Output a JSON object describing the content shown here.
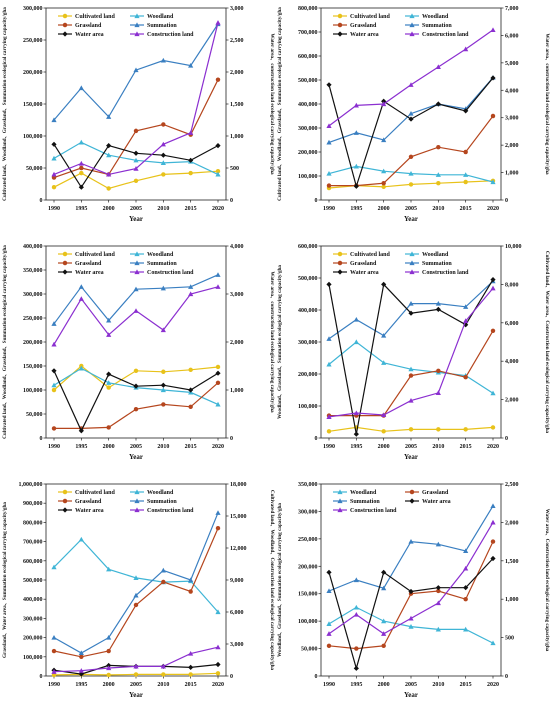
{
  "chart_data": [
    {
      "type": "line",
      "x": [
        1990,
        1995,
        2000,
        2005,
        2010,
        2015,
        2020
      ],
      "xlabel": "Year",
      "ylabel_left": "Cultivated land、Woodland、Grassland、Summation ecological carrying capacity/gha",
      "ylabel_right": "Water area、construction land ecological carrying capacity/gha",
      "ylim_left": [
        0,
        300000
      ],
      "ylim_right": [
        0,
        3000
      ],
      "yticks_left": [
        "0",
        "50,000",
        "100,000",
        "150,000",
        "200,000",
        "250,000",
        "300,000"
      ],
      "yticks_right": [
        "0",
        "500",
        "1,000",
        "1,500",
        "2,000",
        "2,500",
        "3,000"
      ],
      "series": [
        {
          "name": "Cultivated land",
          "axis": "left",
          "color": "#e8c21a",
          "marker": "circle",
          "values": [
            20000,
            42000,
            18000,
            30000,
            40000,
            42000,
            45000
          ]
        },
        {
          "name": "Woodland",
          "axis": "left",
          "color": "#3fb5d6",
          "marker": "triangle",
          "values": [
            65000,
            90000,
            70000,
            62000,
            58000,
            60000,
            40000
          ]
        },
        {
          "name": "Grassland",
          "axis": "left",
          "color": "#b5461e",
          "marker": "circle",
          "values": [
            35000,
            50000,
            40000,
            108000,
            118000,
            102000,
            188000
          ]
        },
        {
          "name": "Summation",
          "axis": "left",
          "color": "#3a7fc1",
          "marker": "triangle",
          "values": [
            125000,
            175000,
            130000,
            203000,
            218000,
            210000,
            275000
          ]
        },
        {
          "name": "Water area",
          "axis": "right",
          "color": "#111111",
          "marker": "diamond",
          "values": [
            870,
            200,
            850,
            730,
            700,
            620,
            850
          ]
        },
        {
          "name": "Construction land",
          "axis": "right",
          "color": "#8b2fd0",
          "marker": "triangle",
          "values": [
            400,
            570,
            400,
            490,
            870,
            1050,
            2770
          ]
        }
      ]
    },
    {
      "type": "line",
      "x": [
        1990,
        1995,
        2000,
        2005,
        2010,
        2015,
        2020
      ],
      "xlabel": "Year",
      "ylabel_left": "Cultivated land、Woodland、Grassland、Summation ecological carrying capacity/gha",
      "ylabel_right": "Water area、construction land ecological carrying capacity/gha",
      "ylim_left": [
        0,
        800000
      ],
      "ylim_right": [
        0,
        7000
      ],
      "yticks_left": [
        "0",
        "100,000",
        "200,000",
        "300,000",
        "400,000",
        "500,000",
        "600,000",
        "700,000",
        "800,000"
      ],
      "yticks_right": [
        "0",
        "1,000",
        "2,000",
        "3,000",
        "4,000",
        "5,000",
        "6,000",
        "7,000"
      ],
      "series": [
        {
          "name": "Cultivated land",
          "axis": "left",
          "color": "#e8c21a",
          "marker": "circle",
          "values": [
            50000,
            60000,
            55000,
            65000,
            70000,
            75000,
            80000
          ]
        },
        {
          "name": "Woodland",
          "axis": "left",
          "color": "#3fb5d6",
          "marker": "triangle",
          "values": [
            110000,
            140000,
            120000,
            110000,
            105000,
            105000,
            75000
          ]
        },
        {
          "name": "Grassland",
          "axis": "left",
          "color": "#b5461e",
          "marker": "circle",
          "values": [
            60000,
            60000,
            70000,
            180000,
            220000,
            200000,
            350000
          ]
        },
        {
          "name": "Summation",
          "axis": "left",
          "color": "#3a7fc1",
          "marker": "triangle",
          "values": [
            240000,
            280000,
            250000,
            360000,
            400000,
            380000,
            510000
          ]
        },
        {
          "name": "Water area",
          "axis": "right",
          "color": "#111111",
          "marker": "diamond",
          "values": [
            4200,
            500,
            3600,
            2950,
            3500,
            3250,
            4450
          ]
        },
        {
          "name": "Construction land",
          "axis": "right",
          "color": "#8b2fd0",
          "marker": "triangle",
          "values": [
            2700,
            3450,
            3500,
            4200,
            4850,
            5500,
            6200
          ]
        }
      ]
    },
    {
      "type": "line",
      "x": [
        1990,
        1995,
        2000,
        2005,
        2010,
        2015,
        2020
      ],
      "xlabel": "Year",
      "ylabel_left": "Cultivated land、Woodland、Grassland、Summation ecological carrying capacity/gha",
      "ylabel_right": "Water area、construction land ecological carrying capacity/gha",
      "ylim_left": [
        0,
        400000
      ],
      "ylim_right": [
        0,
        4000
      ],
      "yticks_left": [
        "0",
        "50,000",
        "100,000",
        "150,000",
        "200,000",
        "250,000",
        "300,000",
        "350,000",
        "400,000"
      ],
      "yticks_right": [
        "0",
        "1,000",
        "2,000",
        "3,000",
        "4,000"
      ],
      "series": [
        {
          "name": "Cultivated land",
          "axis": "left",
          "color": "#e8c21a",
          "marker": "circle",
          "values": [
            100000,
            150000,
            105000,
            140000,
            138000,
            142000,
            148000
          ]
        },
        {
          "name": "Woodland",
          "axis": "left",
          "color": "#3fb5d6",
          "marker": "triangle",
          "values": [
            110000,
            145000,
            115000,
            105000,
            100000,
            95000,
            70000
          ]
        },
        {
          "name": "Grassland",
          "axis": "left",
          "color": "#b5461e",
          "marker": "circle",
          "values": [
            20000,
            20000,
            22000,
            60000,
            70000,
            65000,
            115000
          ]
        },
        {
          "name": "Summation",
          "axis": "left",
          "color": "#3a7fc1",
          "marker": "triangle",
          "values": [
            238000,
            315000,
            245000,
            310000,
            312000,
            315000,
            340000
          ]
        },
        {
          "name": "Water area",
          "axis": "right",
          "color": "#111111",
          "marker": "diamond",
          "values": [
            1400,
            150,
            1330,
            1080,
            1100,
            1000,
            1350
          ]
        },
        {
          "name": "Construction land",
          "axis": "right",
          "color": "#8b2fd0",
          "marker": "triangle",
          "values": [
            1950,
            2900,
            2150,
            2650,
            2250,
            3000,
            3150
          ]
        }
      ]
    },
    {
      "type": "line",
      "x": [
        1990,
        1995,
        2000,
        2005,
        2010,
        2015,
        2020
      ],
      "xlabel": "Year",
      "ylabel_left": "Woodland、Grassland、Summation ecological carrying capacity/gha",
      "ylabel_right": "Cultivated land、Water area、Construction land ecological carrying capacity/gha",
      "ylim_left": [
        0,
        600000
      ],
      "ylim_right": [
        0,
        10000
      ],
      "yticks_left": [
        "0",
        "100,000",
        "200,000",
        "300,000",
        "400,000",
        "500,000",
        "600,000"
      ],
      "yticks_right": [
        "0",
        "2,000",
        "4,000",
        "6,000",
        "8,000",
        "10,000"
      ],
      "series": [
        {
          "name": "Cultivated land",
          "axis": "right",
          "color": "#e8c21a",
          "marker": "circle",
          "values": [
            350,
            550,
            350,
            450,
            450,
            450,
            550
          ]
        },
        {
          "name": "Woodland",
          "axis": "left",
          "color": "#3fb5d6",
          "marker": "triangle",
          "values": [
            230000,
            300000,
            235000,
            215000,
            205000,
            195000,
            140000
          ]
        },
        {
          "name": "Grassland",
          "axis": "left",
          "color": "#b5461e",
          "marker": "circle",
          "values": [
            70000,
            70000,
            70000,
            195000,
            210000,
            190000,
            335000
          ]
        },
        {
          "name": "Summation",
          "axis": "left",
          "color": "#3a7fc1",
          "marker": "triangle",
          "values": [
            310000,
            370000,
            320000,
            420000,
            420000,
            410000,
            490000
          ]
        },
        {
          "name": "Water area",
          "axis": "right",
          "color": "#111111",
          "marker": "diamond",
          "values": [
            8000,
            200,
            8000,
            6500,
            6700,
            5900,
            8250
          ]
        },
        {
          "name": "Construction land",
          "axis": "right",
          "color": "#8b2fd0",
          "marker": "triangle",
          "values": [
            1100,
            1300,
            1200,
            1950,
            2350,
            6100,
            7800
          ]
        }
      ]
    },
    {
      "type": "line",
      "x": [
        1990,
        1995,
        2000,
        2005,
        2010,
        2015,
        2020
      ],
      "xlabel": "Year",
      "ylabel_left": "Grassland、Water area、Summation ecological carrying capacity/gha",
      "ylabel_right": "Cultivated land、Woodland、Construction land ecological carrying capacity/gha",
      "ylim_left": [
        0,
        1000000
      ],
      "ylim_right": [
        0,
        18000
      ],
      "yticks_left": [
        "0",
        "100,000",
        "200,000",
        "300,000",
        "400,000",
        "500,000",
        "600,000",
        "700,000",
        "800,000",
        "900,000",
        "1,000,000"
      ],
      "yticks_right": [
        "0",
        "3,000",
        "6,000",
        "9,000",
        "12,000",
        "15,000",
        "18,000"
      ],
      "series": [
        {
          "name": "Cultivated land",
          "axis": "right",
          "color": "#e8c21a",
          "marker": "circle",
          "values": [
            100,
            150,
            100,
            150,
            150,
            150,
            250
          ]
        },
        {
          "name": "Woodland",
          "axis": "right",
          "color": "#3fb5d6",
          "marker": "triangle",
          "values": [
            10200,
            12800,
            10000,
            9200,
            8800,
            8900,
            6000
          ]
        },
        {
          "name": "Grassland",
          "axis": "left",
          "color": "#b5461e",
          "marker": "circle",
          "values": [
            130000,
            100000,
            130000,
            370000,
            490000,
            440000,
            770000
          ]
        },
        {
          "name": "Summation",
          "axis": "left",
          "color": "#3a7fc1",
          "marker": "triangle",
          "values": [
            200000,
            120000,
            200000,
            420000,
            550000,
            500000,
            850000
          ]
        },
        {
          "name": "Water area",
          "axis": "left",
          "color": "#111111",
          "marker": "diamond",
          "values": [
            30000,
            10000,
            55000,
            50000,
            50000,
            45000,
            60000
          ]
        },
        {
          "name": "Construction land",
          "axis": "right",
          "color": "#8b2fd0",
          "marker": "triangle",
          "values": [
            400,
            500,
            750,
            900,
            900,
            2100,
            2700
          ]
        }
      ]
    },
    {
      "type": "line",
      "x": [
        1990,
        1995,
        2000,
        2005,
        2010,
        2015,
        2020
      ],
      "xlabel": "Year",
      "ylabel_left": "Woodland、Grassland、Summation ecological carrying capacity/gha",
      "ylabel_right": "Water area、Construction land ecological carrying capacity/gha",
      "ylim_left": [
        0,
        350000
      ],
      "ylim_right": [
        0,
        2500
      ],
      "yticks_left": [
        "0",
        "50,000",
        "100,000",
        "150,000",
        "200,000",
        "250,000",
        "300,000",
        "350,000"
      ],
      "yticks_right": [
        "0",
        "500",
        "1,000",
        "1,500",
        "2,000",
        "2,500"
      ],
      "series": [
        {
          "name": "Woodland",
          "axis": "left",
          "color": "#3fb5d6",
          "marker": "triangle",
          "values": [
            95000,
            125000,
            100000,
            90000,
            85000,
            85000,
            60000
          ]
        },
        {
          "name": "Grassland",
          "axis": "left",
          "color": "#b5461e",
          "marker": "circle",
          "values": [
            55000,
            50000,
            55000,
            150000,
            155000,
            140000,
            245000
          ]
        },
        {
          "name": "Summation",
          "axis": "left",
          "color": "#3a7fc1",
          "marker": "triangle",
          "values": [
            155000,
            175000,
            160000,
            245000,
            240000,
            228000,
            310000
          ]
        },
        {
          "name": "Water area",
          "axis": "right",
          "color": "#111111",
          "marker": "diamond",
          "values": [
            1350,
            100,
            1350,
            1100,
            1150,
            1150,
            1530
          ]
        },
        {
          "name": "Construction land",
          "axis": "right",
          "color": "#8b2fd0",
          "marker": "triangle",
          "values": [
            550,
            800,
            550,
            750,
            950,
            1400,
            2000
          ]
        }
      ]
    }
  ]
}
